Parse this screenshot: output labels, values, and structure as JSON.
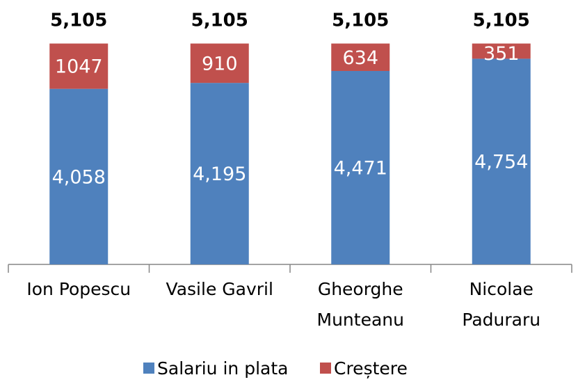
{
  "chart_data": {
    "type": "stacked_bar",
    "categories": [
      "Ion Popescu",
      "Vasile Gavril",
      "Gheorghe\nMunteanu",
      "Nicolae\nPaduraru"
    ],
    "series": [
      {
        "name": "Salariu in plata",
        "color": "#4f81bd",
        "values": [
          4058,
          4195,
          4471,
          4754
        ],
        "value_labels": [
          "4,058",
          "4,195",
          "4,471",
          "4,754"
        ]
      },
      {
        "name": "Creștere",
        "color": "#c0504d",
        "values": [
          1047,
          910,
          634,
          351
        ]
      }
    ],
    "total_labels": [
      "5,105",
      "5,105",
      "5,105",
      "5,105"
    ],
    "ylim": [
      0,
      5500
    ],
    "legend": "bottom"
  }
}
